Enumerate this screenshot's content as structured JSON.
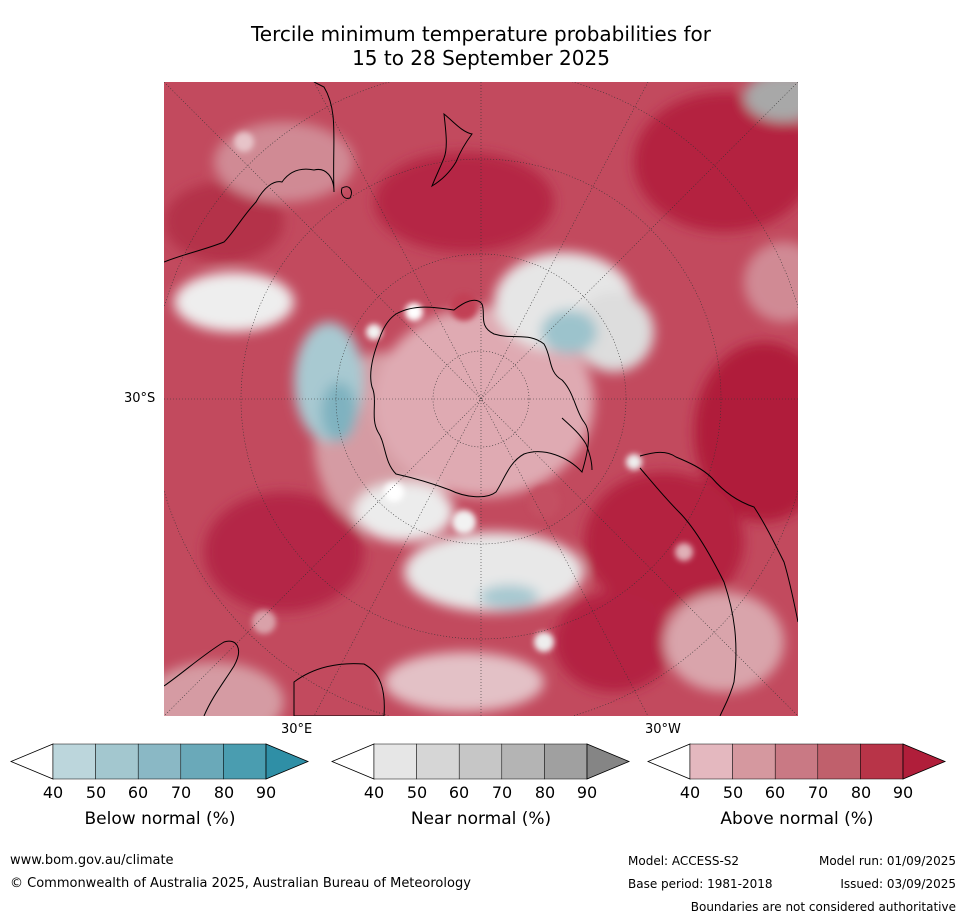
{
  "title_line1": "Tercile minimum temperature probabilities for",
  "title_line2": "15 to 28 September 2025",
  "map": {
    "lat_label": "30°S",
    "lon_label_e": "30°E",
    "lon_label_w": "30°W"
  },
  "colorbars": [
    {
      "title": "Below normal (%)",
      "ticks": [
        "40",
        "50",
        "60",
        "70",
        "80",
        "90"
      ],
      "colors": [
        "#ffffff",
        "#bcd6dc",
        "#a3c7cf",
        "#8ab8c5",
        "#6aa9b9",
        "#4a9db0",
        "#2f8fa6"
      ]
    },
    {
      "title": "Near normal (%)",
      "ticks": [
        "40",
        "50",
        "60",
        "70",
        "80",
        "90"
      ],
      "colors": [
        "#ffffff",
        "#e6e6e6",
        "#d6d6d6",
        "#c6c6c6",
        "#b4b4b4",
        "#a0a0a0",
        "#858585"
      ]
    },
    {
      "title": "Above normal (%)",
      "ticks": [
        "40",
        "50",
        "60",
        "70",
        "80",
        "90"
      ],
      "colors": [
        "#ffffff",
        "#e4b8bf",
        "#d5989f",
        "#c97984",
        "#c0606c",
        "#b83448",
        "#b01e3a"
      ]
    }
  ],
  "footer": {
    "website": "www.bom.gov.au/climate",
    "copyright": "© Commonwealth of Australia 2025, Australian Bureau of Meteorology",
    "model": "Model: ACCESS-S2",
    "model_run": "Model run: 01/09/2025",
    "base_period": "Base period: 1981-2018",
    "issued": "Issued: 03/09/2025",
    "disclaimer": "Boundaries are not considered authoritative"
  }
}
